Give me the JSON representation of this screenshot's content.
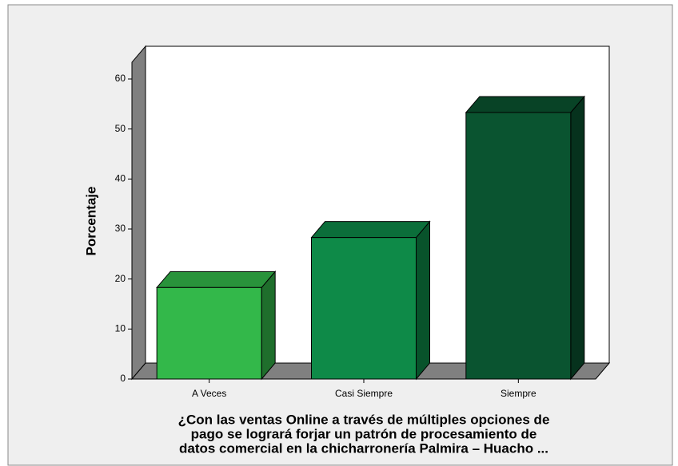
{
  "chart_data": {
    "type": "bar3d",
    "categories": [
      "A Veces",
      "Casi Siempre",
      "Siempre"
    ],
    "values": [
      18.3,
      28.3,
      53.3
    ],
    "colors": [
      "#33b84a",
      "#0e8a48",
      "#0a5430"
    ],
    "ylabel": "Porcentaje",
    "xlabel": [
      "¿Con las ventas Online a través de múltiples opciones de",
      "pago se logrará forjar un patrón de procesamiento de",
      "datos comercial en la chicharronería Palmira – Huacho ..."
    ],
    "ylim": [
      0,
      60
    ],
    "yticks": [
      0,
      10,
      20,
      30,
      40,
      50,
      60
    ]
  }
}
